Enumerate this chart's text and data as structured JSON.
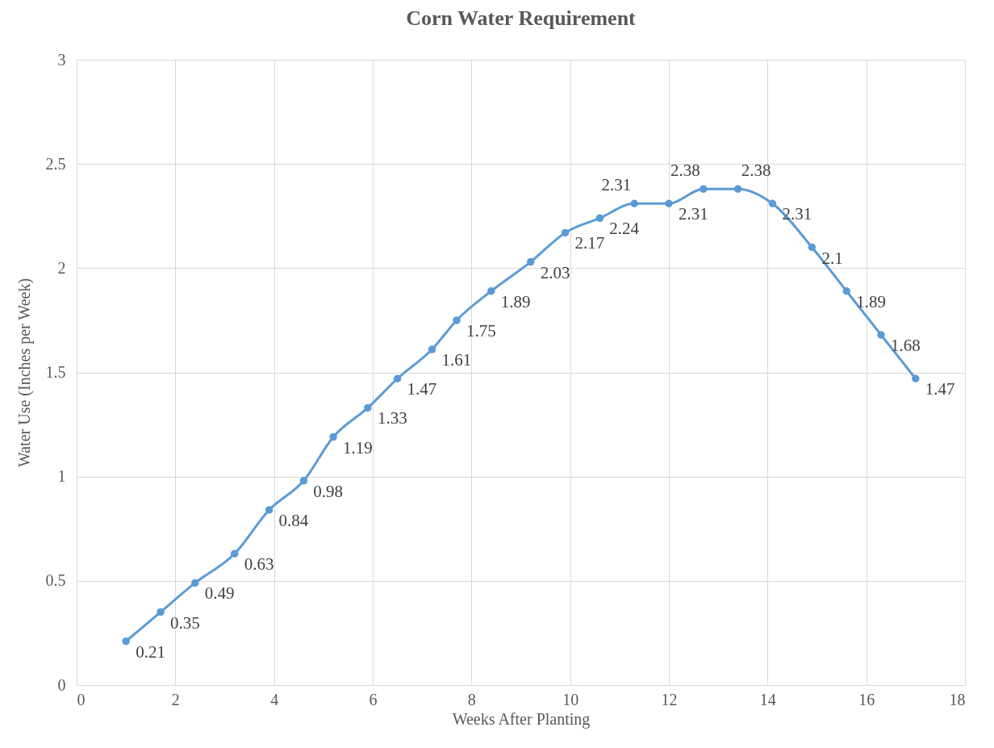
{
  "chart_data": {
    "type": "line",
    "title": "Corn Water Requirement",
    "xlabel": "Weeks After Planting",
    "ylabel": "Water Use (Inches per Week)",
    "x": [
      1.0,
      1.7,
      2.4,
      3.2,
      3.9,
      4.6,
      5.2,
      5.9,
      6.5,
      7.2,
      7.7,
      8.4,
      9.2,
      9.9,
      10.6,
      11.3,
      12.0,
      12.7,
      13.4,
      14.1,
      14.9,
      15.6,
      16.3,
      17.0
    ],
    "series": [
      {
        "color": "#5b9bd5",
        "values": [
          0.21,
          0.35,
          0.49,
          0.63,
          0.84,
          0.98,
          1.19,
          1.33,
          1.47,
          1.61,
          1.75,
          1.89,
          2.03,
          2.17,
          2.24,
          2.31,
          2.31,
          2.38,
          2.38,
          2.31,
          2.1,
          1.89,
          1.68,
          1.47
        ]
      }
    ],
    "xlim": [
      0,
      18
    ],
    "xticks": [
      0,
      2,
      4,
      6,
      8,
      10,
      12,
      14,
      16,
      18
    ],
    "ylim": [
      0,
      3
    ],
    "yticks": [
      0,
      0.5,
      1,
      1.5,
      2,
      2.5,
      3
    ],
    "grid": true,
    "marker": "circle",
    "line_style": "solid",
    "data_labels": true,
    "legend": false
  }
}
